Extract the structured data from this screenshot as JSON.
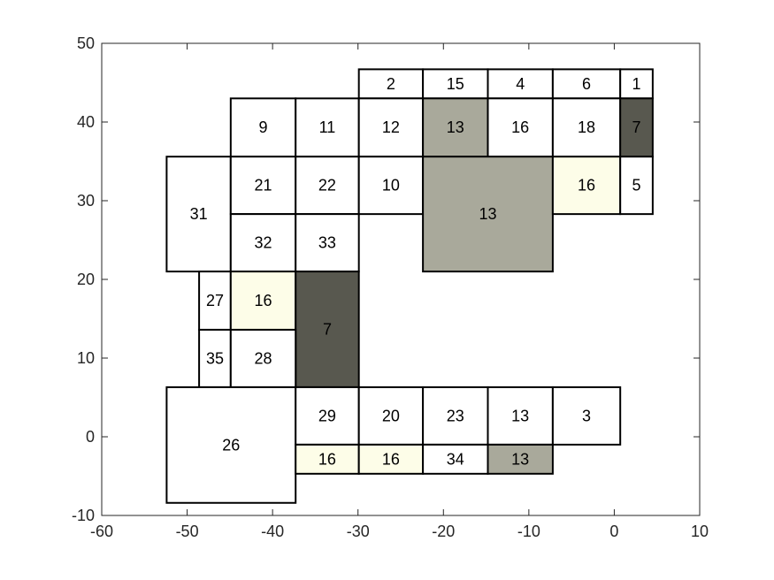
{
  "chart_data": {
    "type": "heatmap",
    "title": "",
    "xlabel": "",
    "ylabel": "",
    "xlim": [
      -60,
      10
    ],
    "ylim": [
      -10,
      50
    ],
    "xticks": [
      "-60",
      "-50",
      "-40",
      "-30",
      "-20",
      "-10",
      "0",
      "10"
    ],
    "yticks": [
      "-10",
      "0",
      "10",
      "20",
      "30",
      "40",
      "50"
    ],
    "grid": false,
    "colors": {
      "white": "#ffffff",
      "light": "#fdfde8",
      "mid": "#a9a99b",
      "dark": "#58584f",
      "edge": "#000000",
      "axis": "#262626"
    },
    "cells": [
      {
        "label": "2",
        "x0": -29.9,
        "x1": -22.4,
        "y0": 43.0,
        "y1": 46.7,
        "fill": "white"
      },
      {
        "label": "15",
        "x0": -22.4,
        "x1": -14.8,
        "y0": 43.0,
        "y1": 46.7,
        "fill": "white"
      },
      {
        "label": "4",
        "x0": -14.8,
        "x1": -7.2,
        "y0": 43.0,
        "y1": 46.7,
        "fill": "white"
      },
      {
        "label": "6",
        "x0": -7.2,
        "x1": 0.7,
        "y0": 43.0,
        "y1": 46.7,
        "fill": "white"
      },
      {
        "label": "1",
        "x0": 0.7,
        "x1": 4.5,
        "y0": 43.0,
        "y1": 46.7,
        "fill": "white"
      },
      {
        "label": "9",
        "x0": -44.9,
        "x1": -37.3,
        "y0": 35.6,
        "y1": 43.0,
        "fill": "white"
      },
      {
        "label": "11",
        "x0": -37.3,
        "x1": -29.9,
        "y0": 35.6,
        "y1": 43.0,
        "fill": "white"
      },
      {
        "label": "12",
        "x0": -29.9,
        "x1": -22.4,
        "y0": 35.6,
        "y1": 43.0,
        "fill": "white"
      },
      {
        "label": "13",
        "x0": -22.4,
        "x1": -14.8,
        "y0": 35.6,
        "y1": 43.0,
        "fill": "mid"
      },
      {
        "label": "16",
        "x0": -14.8,
        "x1": -7.2,
        "y0": 35.6,
        "y1": 43.0,
        "fill": "white"
      },
      {
        "label": "18",
        "x0": -7.2,
        "x1": 0.7,
        "y0": 35.6,
        "y1": 43.0,
        "fill": "white"
      },
      {
        "label": "7",
        "x0": 0.7,
        "x1": 4.5,
        "y0": 35.6,
        "y1": 43.0,
        "fill": "dark"
      },
      {
        "label": "31",
        "x0": -52.4,
        "x1": -44.9,
        "y0": 21.0,
        "y1": 35.6,
        "fill": "white"
      },
      {
        "label": "21",
        "x0": -44.9,
        "x1": -37.3,
        "y0": 28.3,
        "y1": 35.6,
        "fill": "white"
      },
      {
        "label": "22",
        "x0": -37.3,
        "x1": -29.9,
        "y0": 28.3,
        "y1": 35.6,
        "fill": "white"
      },
      {
        "label": "10",
        "x0": -29.9,
        "x1": -22.4,
        "y0": 28.3,
        "y1": 35.6,
        "fill": "white"
      },
      {
        "label": "13",
        "x0": -22.4,
        "x1": -7.2,
        "y0": 21.0,
        "y1": 35.6,
        "fill": "mid"
      },
      {
        "label": "16",
        "x0": -7.2,
        "x1": 0.7,
        "y0": 28.3,
        "y1": 35.6,
        "fill": "light"
      },
      {
        "label": "5",
        "x0": 0.7,
        "x1": 4.5,
        "y0": 28.3,
        "y1": 35.6,
        "fill": "white"
      },
      {
        "label": "32",
        "x0": -44.9,
        "x1": -37.3,
        "y0": 21.0,
        "y1": 28.3,
        "fill": "white"
      },
      {
        "label": "33",
        "x0": -37.3,
        "x1": -29.9,
        "y0": 21.0,
        "y1": 28.3,
        "fill": "white"
      },
      {
        "label": "27",
        "x0": -48.6,
        "x1": -44.9,
        "y0": 13.6,
        "y1": 21.0,
        "fill": "white"
      },
      {
        "label": "16",
        "x0": -44.9,
        "x1": -37.3,
        "y0": 13.6,
        "y1": 21.0,
        "fill": "light"
      },
      {
        "label": "7",
        "x0": -37.3,
        "x1": -29.9,
        "y0": 6.3,
        "y1": 21.0,
        "fill": "dark"
      },
      {
        "label": "35",
        "x0": -48.6,
        "x1": -44.9,
        "y0": 6.3,
        "y1": 13.6,
        "fill": "white"
      },
      {
        "label": "28",
        "x0": -44.9,
        "x1": -37.3,
        "y0": 6.3,
        "y1": 13.6,
        "fill": "white"
      },
      {
        "label": "26",
        "x0": -52.4,
        "x1": -37.3,
        "y0": -8.4,
        "y1": 6.3,
        "fill": "white"
      },
      {
        "label": "29",
        "x0": -37.3,
        "x1": -29.9,
        "y0": -1.0,
        "y1": 6.3,
        "fill": "white"
      },
      {
        "label": "20",
        "x0": -29.9,
        "x1": -22.4,
        "y0": -1.0,
        "y1": 6.3,
        "fill": "white"
      },
      {
        "label": "23",
        "x0": -22.4,
        "x1": -14.8,
        "y0": -1.0,
        "y1": 6.3,
        "fill": "white"
      },
      {
        "label": "13",
        "x0": -14.8,
        "x1": -7.2,
        "y0": -1.0,
        "y1": 6.3,
        "fill": "white"
      },
      {
        "label": "3",
        "x0": -7.2,
        "x1": 0.7,
        "y0": -1.0,
        "y1": 6.3,
        "fill": "white"
      },
      {
        "label": "16",
        "x0": -37.3,
        "x1": -29.9,
        "y0": -4.7,
        "y1": -1.0,
        "fill": "light"
      },
      {
        "label": "16",
        "x0": -29.9,
        "x1": -22.4,
        "y0": -4.7,
        "y1": -1.0,
        "fill": "light"
      },
      {
        "label": "34",
        "x0": -22.4,
        "x1": -14.8,
        "y0": -4.7,
        "y1": -1.0,
        "fill": "white"
      },
      {
        "label": "13",
        "x0": -14.8,
        "x1": -7.2,
        "y0": -4.7,
        "y1": -1.0,
        "fill": "mid"
      }
    ]
  }
}
